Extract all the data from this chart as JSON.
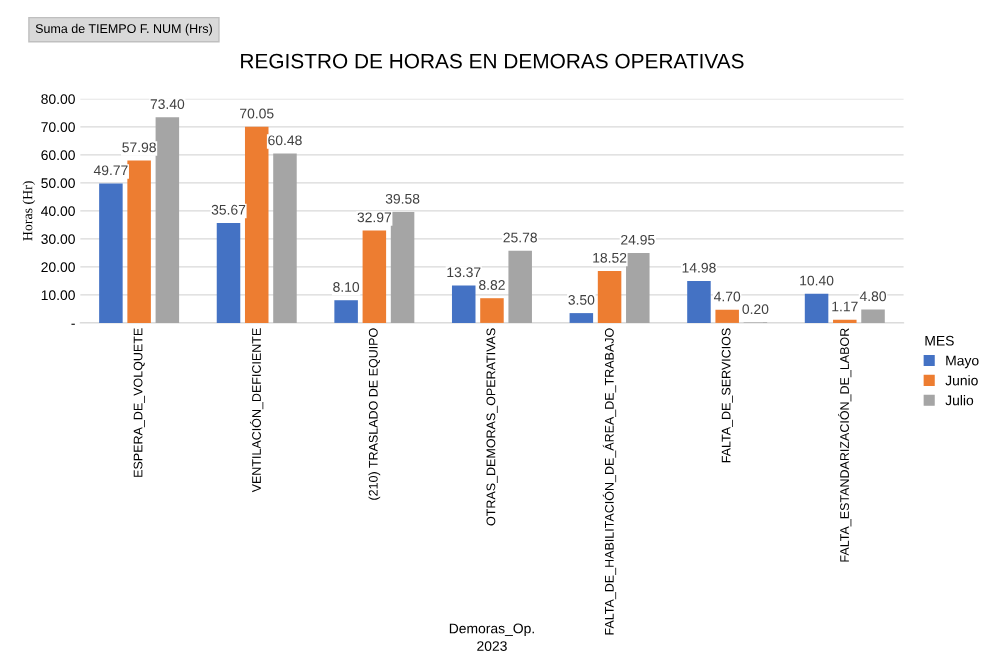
{
  "chart_data": {
    "type": "bar",
    "title": "REGISTRO DE HORAS EN DEMORAS OPERATIVAS",
    "xlabel": "Demoras_Op.",
    "ylabel": "Horas (Hr)",
    "legend_title": "MES",
    "annotations": [
      "Suma de TIEMPO F. NUM (Hrs)",
      "2023"
    ],
    "categories": [
      "ESPERA_DE_VOLQUETE",
      "VENTILACIÓN_DEFICIENTE",
      "(210) TRASLADO DE EQUIPO",
      "OTRAS_DEMORAS_OPERATIVAS",
      "FALTA_DE_HABILITACIÓN_DE_ÁREA_DE_TRABAJO",
      "FALTA_DE_SERVICIOS",
      "FALTA_ESTANDARIZACIÓN_DE_LABOR"
    ],
    "series": [
      {
        "name": "Mayo",
        "color": "#4472c4",
        "values": [
          49.77,
          35.67,
          8.1,
          13.37,
          3.5,
          14.98,
          10.4
        ],
        "value_labels": [
          "49.77",
          "35.67",
          "8.10",
          "13.37",
          "3.50",
          "14.98",
          "10.40"
        ]
      },
      {
        "name": "Junio",
        "color": "#ed7d31",
        "values": [
          57.98,
          70.05,
          32.97,
          8.82,
          18.52,
          4.7,
          1.17
        ],
        "value_labels": [
          "57.98",
          "70.05",
          "32.97",
          "8.82",
          "18.52",
          "4.70",
          "1.17"
        ]
      },
      {
        "name": "Julio",
        "color": "#a5a5a5",
        "values": [
          73.4,
          60.48,
          39.58,
          25.78,
          24.95,
          0.2,
          4.8
        ],
        "value_labels": [
          "73.40",
          "60.48",
          "39.58",
          "25.78",
          "24.95",
          "0.20",
          "4.80"
        ]
      }
    ],
    "ylim": [
      0,
      80
    ],
    "yticks": [
      {
        "value": 0,
        "label": "-"
      },
      {
        "value": 10,
        "label": "10.00"
      },
      {
        "value": 20,
        "label": "20.00"
      },
      {
        "value": 30,
        "label": "30.00"
      },
      {
        "value": 40,
        "label": "40.00"
      },
      {
        "value": 50,
        "label": "50.00"
      },
      {
        "value": 60,
        "label": "60.00"
      },
      {
        "value": 70,
        "label": "70.00"
      },
      {
        "value": 80,
        "label": "80.00"
      }
    ],
    "grid": "y",
    "legend": "right"
  }
}
